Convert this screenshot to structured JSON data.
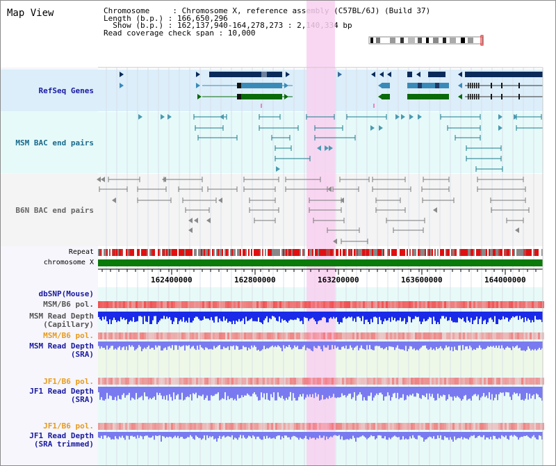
{
  "title": "Map View",
  "header": {
    "chromosome": "Chromosome     : Chromosome X, reference assembly (C57BL/6J) (Build 37)",
    "length": "Length (b.p.) : 166,650,296",
    "show": "  Show (b.p.) : 162,137,940-164,278,273 : 2,140,334 bp",
    "span": "Read coverage check span : 10,000"
  },
  "tracks": {
    "refseq": "RefSeq Genes",
    "msm_bac": "MSM BAC end pairs",
    "b6n_bac": "B6N BAC end pairs",
    "repeat": "Repeat",
    "chromosome": "chromosome X",
    "dbsnp": "dbSNP(Mouse)",
    "msm_pol1": "MSM/B6 pol.",
    "msm_depth_cap_1": "MSM Read Depth",
    "msm_depth_cap_2": "(Capillary)",
    "msm_pol2": "MSM/B6 pol.",
    "msm_depth_sra_1": "MSM Read Depth",
    "msm_depth_sra_2": "(SRA)",
    "jf1_pol1": "JF1/B6 pol.",
    "jf1_depth_sra_1": "JF1 Read Depth",
    "jf1_depth_sra_2": "(SRA)",
    "jf1_pol2": "JF1/B6 pol.",
    "jf1_depth_trim_1": "JF1 Read Depth",
    "jf1_depth_trim_2": "(SRA trimmed)"
  },
  "ruler": {
    "ticks": [
      "162400000",
      "162800000",
      "163200000",
      "163600000",
      "164000000"
    ]
  },
  "colors": {
    "refseq_bg": "#dbeefa",
    "msm_bg": "#e6fafa",
    "b6n_bg": "#f4f4f4",
    "highlight": "#f8d0f0",
    "gene_dark": "#0a2a5a",
    "gene_mid": "#3a8ab8",
    "gene_green": "#0a6a0a",
    "msm_line": "#1a7a8a",
    "b6n_line": "#7a7a7a",
    "chrom_green": "#0a7a0a",
    "depth_blue": "#1a2ae8",
    "depth_light": "#7a7af0",
    "pol_red": "#f05050",
    "label_blue": "#1a1aa0",
    "label_teal": "#1a6a8a",
    "label_orange": "#e89a1a"
  }
}
